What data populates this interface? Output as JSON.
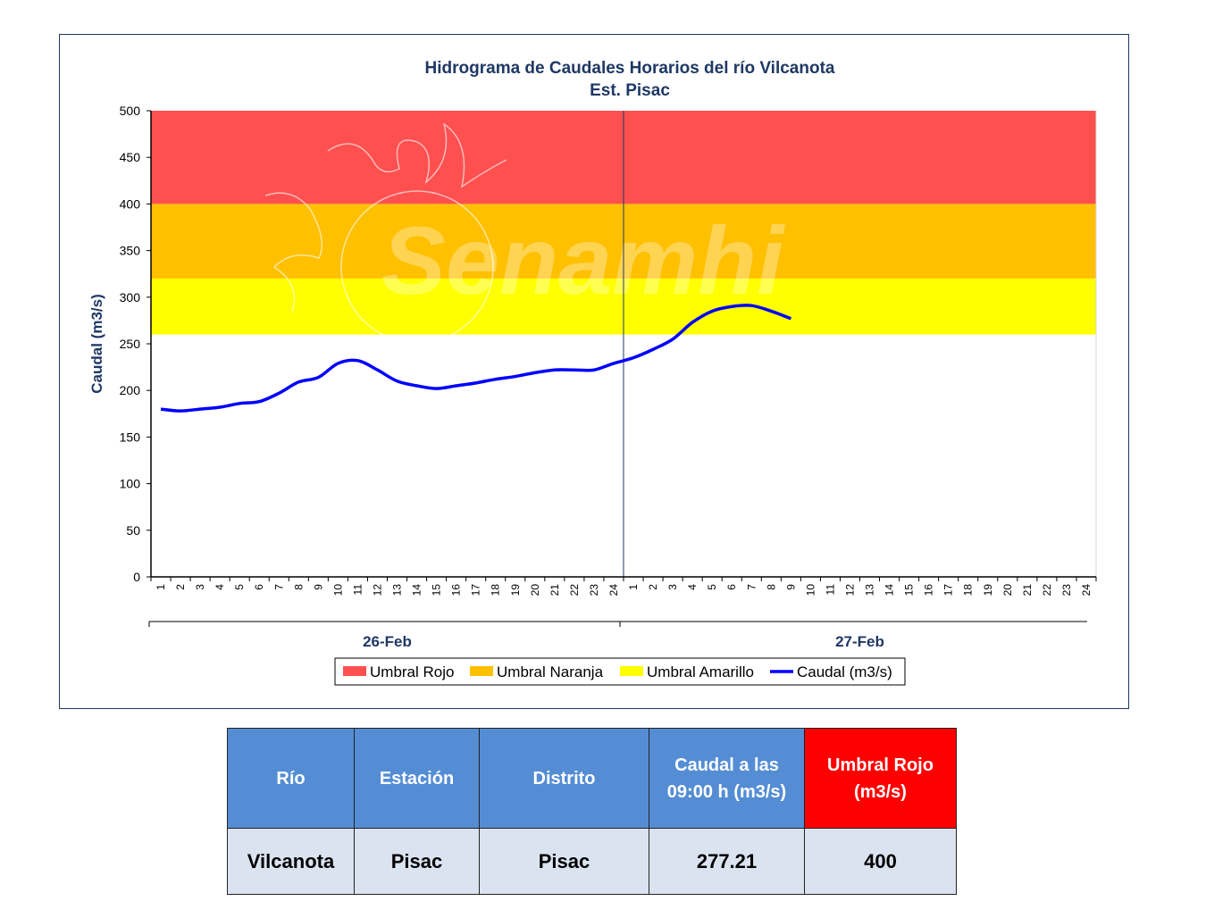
{
  "chart_data": {
    "type": "line",
    "title": "Hidrograma  de Caudales Horarios  del río Vilcanota",
    "subtitle": "Est. Pisac",
    "ylabel": "Caudal  (m3/s)",
    "ylim": [
      0,
      500
    ],
    "yticks": [
      0,
      50,
      100,
      150,
      200,
      250,
      300,
      350,
      400,
      450,
      500
    ],
    "x_hour_labels": [
      "1",
      "2",
      "3",
      "4",
      "5",
      "6",
      "7",
      "8",
      "9",
      "10",
      "11",
      "12",
      "13",
      "14",
      "15",
      "16",
      "17",
      "18",
      "19",
      "20",
      "21",
      "22",
      "23",
      "24"
    ],
    "days": [
      "26-Feb",
      "27-Feb"
    ],
    "thresholds": [
      {
        "name": "Umbral Rojo",
        "from": 400,
        "to": 500,
        "color": "#ff5050"
      },
      {
        "name": "Umbral Naranja",
        "from": 320,
        "to": 400,
        "color": "#ffc000"
      },
      {
        "name": "Umbral Amarillo",
        "from": 260,
        "to": 320,
        "color": "#ffff00"
      }
    ],
    "series": [
      {
        "name": "Caudal (m3/s)",
        "color": "#0000ff",
        "day1": [
          180,
          178,
          180,
          182,
          186,
          188,
          197,
          209,
          214,
          229,
          232,
          222,
          210,
          205,
          202,
          205,
          208,
          212,
          215,
          219,
          222,
          222,
          222,
          229
        ],
        "day2": [
          235,
          244,
          255,
          273,
          285,
          290,
          291,
          285,
          277
        ]
      }
    ],
    "legend": [
      "Umbral Rojo",
      "Umbral Naranja",
      "Umbral Amarillo",
      "Caudal (m3/s)"
    ],
    "legend_position": "bottom",
    "watermark": "Senamhi",
    "grid": false
  },
  "table": {
    "headers": [
      "Río",
      "Estación",
      "Distrito",
      "Caudal a las 09:00 h (m3/s)",
      "Umbral Rojo (m3/s)"
    ],
    "header_lines": [
      [
        "Río"
      ],
      [
        "Estación"
      ],
      [
        "Distrito"
      ],
      [
        "Caudal a las",
        "09:00 h (m3/s)"
      ],
      [
        "Umbral Rojo",
        "(m3/s)"
      ]
    ],
    "row": [
      "Vilcanota",
      "Pisac",
      "Pisac",
      "277.21",
      "400"
    ]
  }
}
